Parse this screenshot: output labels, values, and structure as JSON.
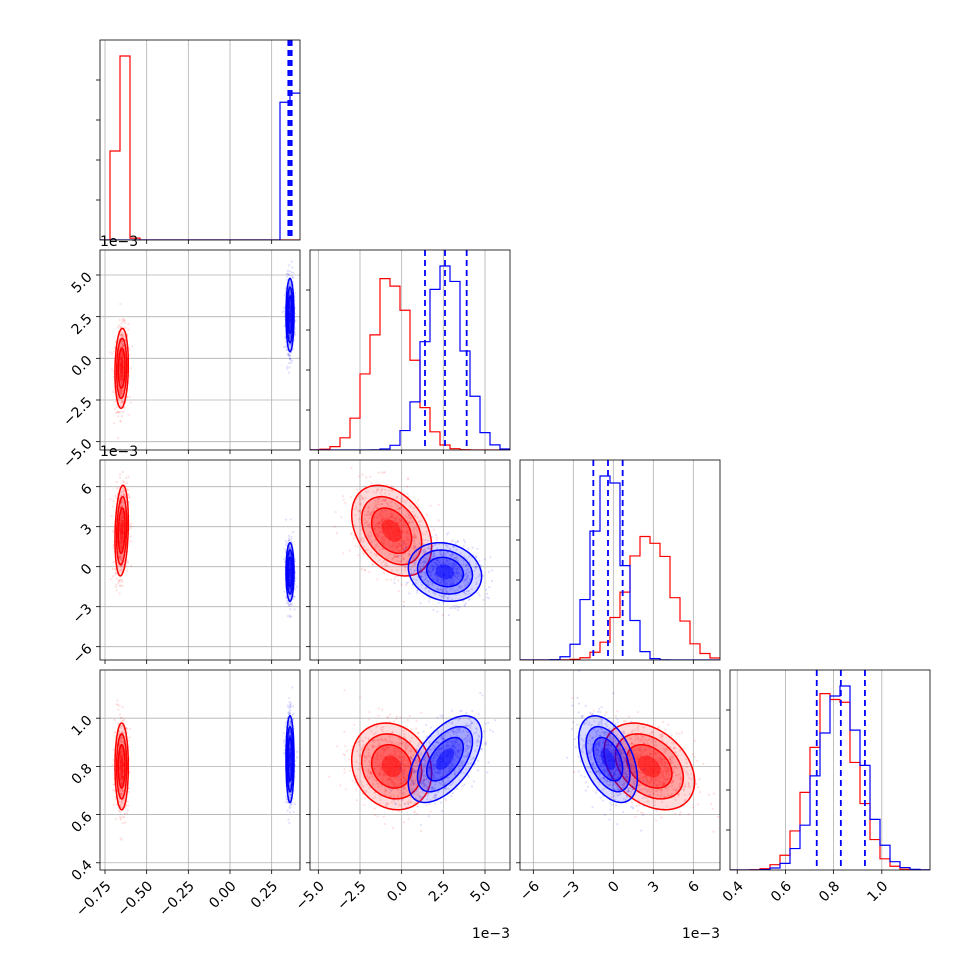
{
  "chart_data": {
    "type": "corner",
    "grid": true,
    "colors": {
      "red": "#ff0000",
      "blue": "#0000ff"
    },
    "series_order": [
      "red",
      "blue"
    ],
    "params": [
      {
        "range": [
          -0.78,
          0.42
        ],
        "ticks": [
          -0.75,
          -0.5,
          -0.25,
          0.0,
          0.25
        ],
        "tick_labels": [
          "−0.75",
          "−0.50",
          "−0.25",
          "0.00",
          "0.25"
        ],
        "scale_label": "",
        "centers": {
          "red": -0.65,
          "blue": 0.36
        },
        "sigmas": {
          "red": 0.02,
          "blue": 0.012
        },
        "quantiles_blue": [
          0.35,
          0.36,
          0.37
        ]
      },
      {
        "range": [
          -5.5,
          6.5
        ],
        "ticks": [
          -5.0,
          -2.5,
          0.0,
          2.5,
          5.0
        ],
        "tick_labels": [
          "−5.0",
          "−2.5",
          "0.0",
          "2.5",
          "5.0"
        ],
        "scale_label": "1e−3",
        "centers": {
          "red": -0.6,
          "blue": 2.6
        },
        "sigmas": {
          "red": 1.2,
          "blue": 1.1
        },
        "quantiles_blue": [
          1.4,
          2.6,
          3.9
        ]
      },
      {
        "range": [
          -7,
          8
        ],
        "ticks": [
          -6,
          -3,
          0,
          3,
          6
        ],
        "tick_labels": [
          "−6",
          "−3",
          "0",
          "3",
          "6"
        ],
        "scale_label": "1e−3",
        "centers": {
          "red": 2.7,
          "blue": -0.4
        },
        "sigmas": {
          "red": 1.7,
          "blue": 1.1
        },
        "quantiles_blue": [
          -1.5,
          -0.4,
          0.7
        ]
      },
      {
        "range": [
          0.37,
          1.2
        ],
        "ticks": [
          0.4,
          0.6,
          0.8,
          1.0
        ],
        "tick_labels": [
          "0.4",
          "0.6",
          "0.8",
          "1.0"
        ],
        "scale_label": "",
        "centers": {
          "red": 0.8,
          "blue": 0.83
        },
        "sigmas": {
          "red": 0.09,
          "blue": 0.09
        },
        "quantiles_blue": [
          0.73,
          0.83,
          0.93
        ]
      }
    ],
    "correlations": {
      "1-0": {
        "red": 0.1,
        "blue": 0.0
      },
      "2-0": {
        "red": 0.2,
        "blue": 0.0
      },
      "2-1": {
        "red": -0.35,
        "blue": -0.15
      },
      "3-0": {
        "red": 0.0,
        "blue": 0.0
      },
      "3-1": {
        "red": -0.15,
        "blue": 0.55
      },
      "3-2": {
        "red": -0.35,
        "blue": -0.45
      }
    }
  }
}
